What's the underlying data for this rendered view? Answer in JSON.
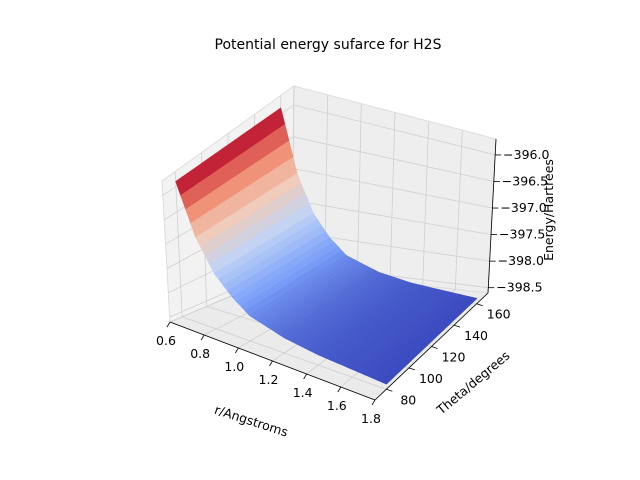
{
  "chart_data": {
    "type": "surface3d",
    "title": "Potential energy sufarce for H2S",
    "xlabel": "r/Angstroms",
    "ylabel": "Theta/degrees",
    "zlabel": "Energy/Hartrees",
    "xticks": [
      "0.6",
      "0.8",
      "1.0",
      "1.2",
      "1.4",
      "1.6",
      "1.8"
    ],
    "yticks": [
      "80",
      "100",
      "120",
      "140",
      "160"
    ],
    "zticks": [
      "−396.0",
      "−396.5",
      "−397.0",
      "−397.5",
      "−398.0",
      "−398.5"
    ],
    "xlim": [
      0.6,
      1.8
    ],
    "ylim": [
      70,
      170
    ],
    "zlim": [
      -398.6,
      -395.7
    ],
    "colormap": "coolwarm",
    "cmap_colors": [
      "#3b4cc0",
      "#7b9ff9",
      "#c0d4f5",
      "#f2cbb7",
      "#ee8468",
      "#b40426"
    ],
    "surface_samples": [
      {
        "r": 0.6,
        "energy": -395.9
      },
      {
        "r": 0.7,
        "energy": -396.9
      },
      {
        "r": 0.8,
        "energy": -397.5
      },
      {
        "r": 0.9,
        "energy": -397.85
      },
      {
        "r": 1.0,
        "energy": -398.1
      },
      {
        "r": 1.2,
        "energy": -398.3
      },
      {
        "r": 1.4,
        "energy": -398.4
      },
      {
        "r": 1.6,
        "energy": -398.45
      },
      {
        "r": 1.8,
        "energy": -398.5
      }
    ],
    "grid": true
  }
}
